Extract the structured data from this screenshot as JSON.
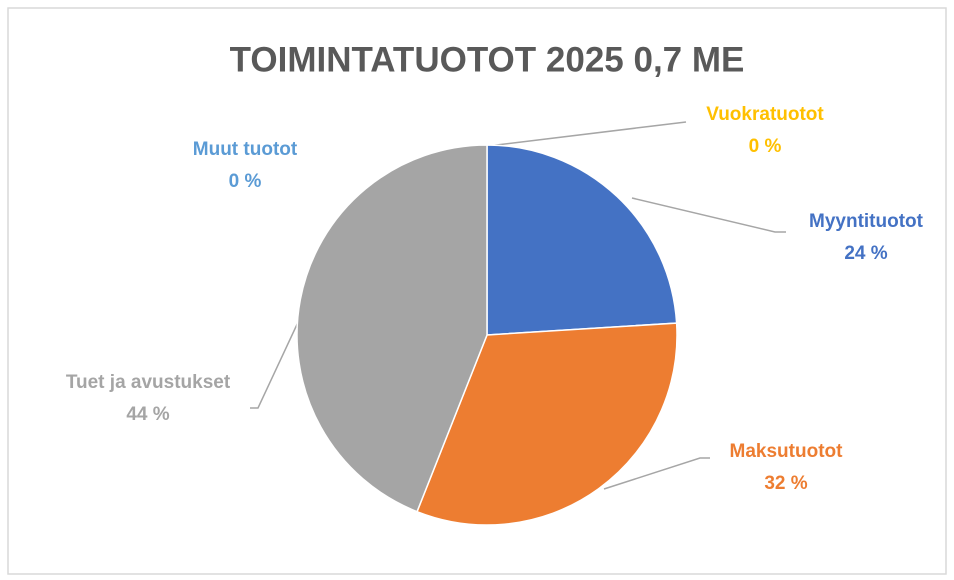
{
  "chart_data": {
    "type": "pie",
    "title": "TOIMINTATUOTOT  2025 0,7 ME",
    "categories": [
      "Vuokratuotot",
      "Myyntituotot",
      "Maksutuotot",
      "Tuet ja avustukset",
      "Muut tuotot"
    ],
    "values": [
      0,
      24,
      32,
      44,
      0
    ],
    "value_labels": [
      "0 %",
      "24 %",
      "32 %",
      "44 %",
      "0 %"
    ],
    "colors": [
      "#ffc000",
      "#4472c4",
      "#ed7d31",
      "#a5a5a5",
      "#5b9bd5"
    ]
  }
}
